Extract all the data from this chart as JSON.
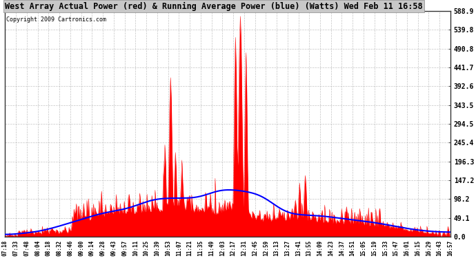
{
  "title": "West Array Actual Power (red) & Running Average Power (blue) (Watts) Wed Feb 11 16:58",
  "copyright": "Copyright 2009 Cartronics.com",
  "ylabel_right_values": [
    588.9,
    539.8,
    490.8,
    441.7,
    392.6,
    343.5,
    294.5,
    245.4,
    196.3,
    147.2,
    98.2,
    49.1,
    0.0
  ],
  "ymax": 588.9,
  "ymin": 0.0,
  "bg_color": "#ffffff",
  "plot_bg_color": "#ffffff",
  "grid_color": "#aaaaaa",
  "actual_color": "#ff0000",
  "avg_color": "#0000ff",
  "time_labels": [
    "07:18",
    "07:33",
    "07:48",
    "08:04",
    "08:18",
    "08:32",
    "08:46",
    "09:00",
    "09:14",
    "09:28",
    "09:43",
    "09:57",
    "10:11",
    "10:25",
    "10:39",
    "10:53",
    "11:07",
    "11:21",
    "11:35",
    "11:49",
    "12:03",
    "12:17",
    "12:31",
    "12:45",
    "12:59",
    "13:13",
    "13:27",
    "13:41",
    "13:55",
    "14:09",
    "14:23",
    "14:37",
    "14:51",
    "15:05",
    "15:19",
    "15:33",
    "15:47",
    "16:01",
    "16:15",
    "16:29",
    "16:43",
    "16:57"
  ],
  "n_points": 550
}
